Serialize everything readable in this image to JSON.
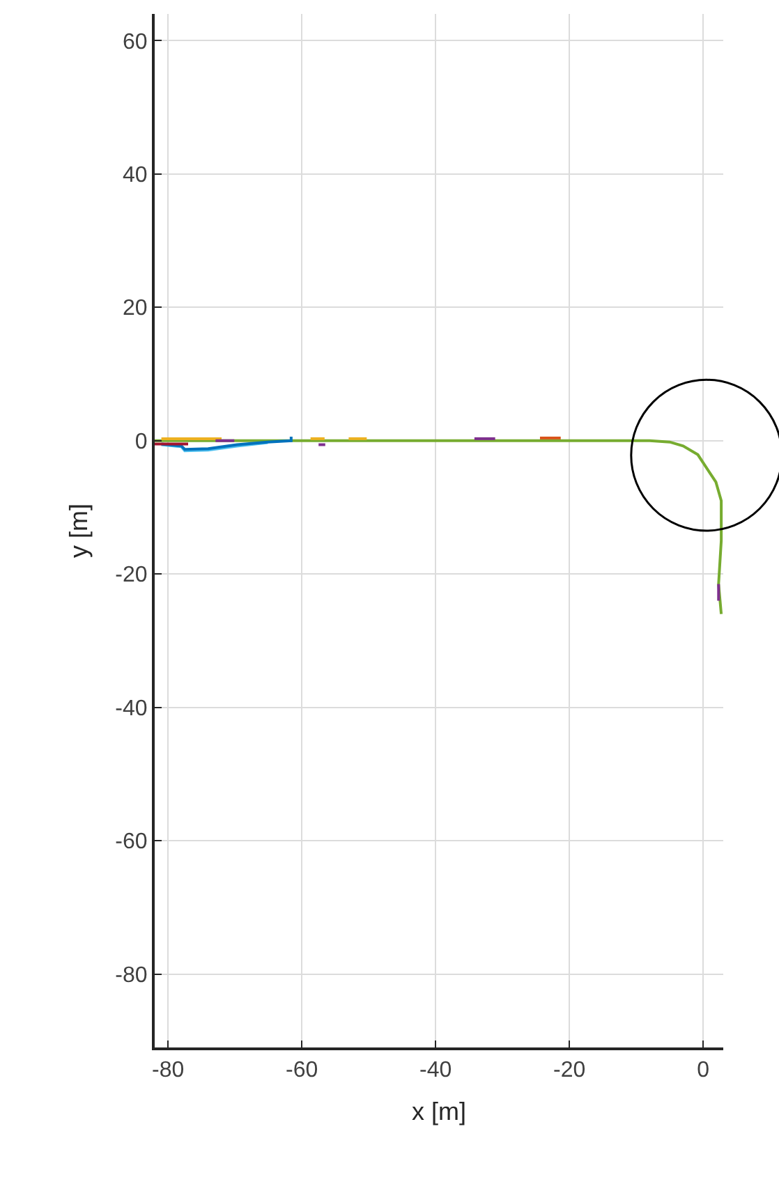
{
  "chart_data": {
    "type": "line",
    "xlabel": "x [m]",
    "ylabel": "y [m]",
    "xlim": [
      -82,
      3
    ],
    "ylim": [
      -91,
      64
    ],
    "xticks": [
      -80,
      -60,
      -40,
      -20,
      0
    ],
    "yticks": [
      -80,
      -60,
      -40,
      -20,
      0,
      20,
      40,
      60
    ],
    "grid": true,
    "marker": "none",
    "line_style": "solid",
    "series": [
      {
        "color": "#77ac30",
        "x": [
          -82,
          -60,
          -40,
          -20,
          -8,
          -5,
          -3,
          -0.8,
          1.9,
          2.7,
          2.7,
          2.3,
          2.7
        ],
        "values": [
          0,
          0,
          0,
          0,
          0,
          -0.2,
          -0.8,
          -2.1,
          -6.2,
          -9,
          -15,
          -21.5,
          -26
        ]
      },
      {
        "color": "#4dbeee",
        "x": [
          -81,
          -78,
          -77.5,
          -74,
          -69.7,
          -65.1
        ],
        "values": [
          -0.6,
          -0.9,
          -1.5,
          -1.4,
          -0.8,
          -0.3
        ]
      },
      {
        "color": "#0072bd",
        "x": [
          -81,
          -78,
          -77.5,
          -74,
          -69.7,
          -65.1,
          -61.6,
          -61.6
        ],
        "values": [
          -0.5,
          -0.8,
          -1.3,
          -1.2,
          -0.6,
          -0.2,
          0,
          0.6
        ]
      },
      {
        "color": "#edb120",
        "x": [
          -81,
          -72,
          null,
          -58.7,
          -56.6,
          null,
          -53,
          -50.3
        ],
        "values": [
          0.3,
          0.3,
          null,
          0.3,
          0.3,
          null,
          0.3,
          0.3
        ]
      },
      {
        "color": "#a2142f",
        "x": [
          -82,
          -77
        ],
        "values": [
          -0.5,
          -0.5
        ]
      },
      {
        "color": "#7e2f8e",
        "x": [
          -72.9,
          -70.1,
          null,
          -57.5,
          -56.5,
          null,
          -34.2,
          -31.1,
          null,
          2.3,
          2.3
        ],
        "values": [
          0,
          0,
          null,
          -0.6,
          -0.6,
          null,
          0.3,
          0.3,
          null,
          -21.5,
          -24
        ]
      },
      {
        "color": "#d95319",
        "x": [
          -24.4,
          -21.3
        ],
        "values": [
          0.4,
          0.4
        ]
      }
    ]
  }
}
